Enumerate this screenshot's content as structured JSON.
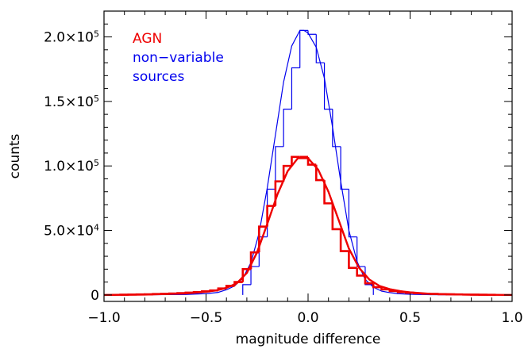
{
  "chart_data": {
    "type": "line",
    "title": "",
    "xlabel": "magnitude difference",
    "ylabel": "counts",
    "xlim": [
      -1.0,
      1.0
    ],
    "ylim": [
      -5000,
      220000
    ],
    "grid": false,
    "legend_placement": "top-left",
    "x_tick_labels": [
      "−1.0",
      "−0.5",
      "0.0",
      "0.5",
      "1.0"
    ],
    "x_tick_values": [
      -1.0,
      -0.5,
      0.0,
      0.5,
      1.0
    ],
    "y_tick_values": [
      0,
      50000,
      100000,
      150000,
      200000
    ],
    "y_tick_labels": [
      {
        "text": "0",
        "mantissa": "0",
        "exponent": ""
      },
      {
        "text": "5.0×10⁴",
        "mantissa": "5.0×10",
        "exponent": "4"
      },
      {
        "text": "1.0×10⁵",
        "mantissa": "1.0×10",
        "exponent": "5"
      },
      {
        "text": "1.5×10⁵",
        "mantissa": "1.5×10",
        "exponent": "5"
      },
      {
        "text": "2.0×10⁵",
        "mantissa": "2.0×10",
        "exponent": "5"
      }
    ],
    "bin_width": 0.04,
    "series": [
      {
        "name": "non−variable sources",
        "legend_lines": [
          "non−variable",
          "sources"
        ],
        "color": "#0000ee",
        "histogram": {
          "bin_centers": [
            -0.3,
            -0.26,
            -0.22,
            -0.18,
            -0.14,
            -0.1,
            -0.06,
            -0.02,
            0.02,
            0.06,
            0.1,
            0.14,
            0.18,
            0.22,
            0.26,
            0.3
          ],
          "counts": [
            8000,
            22000,
            45000,
            82000,
            115000,
            144000,
            176000,
            205000,
            202000,
            180000,
            144000,
            115000,
            82000,
            45000,
            22000,
            8000
          ]
        },
        "fit": {
          "x": [
            -1.0,
            -0.6,
            -0.5,
            -0.44,
            -0.4,
            -0.36,
            -0.32,
            -0.28,
            -0.24,
            -0.2,
            -0.16,
            -0.12,
            -0.08,
            -0.04,
            -0.02,
            0.0,
            0.04,
            0.08,
            0.12,
            0.16,
            0.2,
            0.24,
            0.28,
            0.32,
            0.36,
            0.4,
            0.44,
            0.5,
            0.6,
            1.0
          ],
          "y": [
            0,
            400,
            1000,
            2000,
            4000,
            7000,
            13000,
            25000,
            48000,
            83000,
            124000,
            165000,
            193000,
            205000,
            205000,
            203000,
            192000,
            168000,
            130000,
            88000,
            50000,
            26000,
            12000,
            6000,
            3000,
            1800,
            1000,
            500,
            200,
            0
          ]
        }
      },
      {
        "name": "AGN",
        "legend_lines": [
          "AGN"
        ],
        "color": "#ee0000",
        "histogram": {
          "bin_centers": [
            -0.9,
            -0.86,
            -0.82,
            -0.78,
            -0.74,
            -0.7,
            -0.66,
            -0.62,
            -0.58,
            -0.54,
            -0.5,
            -0.46,
            -0.42,
            -0.38,
            -0.34,
            -0.3,
            -0.26,
            -0.22,
            -0.18,
            -0.14,
            -0.1,
            -0.06,
            -0.02,
            0.02,
            0.06,
            0.1,
            0.14,
            0.18,
            0.22,
            0.26,
            0.3,
            0.34,
            0.38,
            0.42,
            0.46,
            0.5,
            0.54,
            0.58,
            0.62,
            0.66,
            0.7,
            0.74,
            0.78,
            0.82,
            0.86,
            0.9
          ],
          "counts": [
            200,
            300,
            400,
            500,
            700,
            900,
            1100,
            1400,
            1800,
            2200,
            2800,
            3500,
            5000,
            7000,
            10000,
            20000,
            33000,
            53000,
            69000,
            88000,
            100000,
            107000,
            107000,
            101000,
            89000,
            71000,
            51000,
            34000,
            21000,
            15000,
            9000,
            6000,
            4300,
            3000,
            2200,
            1700,
            1300,
            1000,
            800,
            600,
            500,
            400,
            300,
            250,
            200,
            150
          ]
        },
        "fit": {
          "x": [
            -1.0,
            -0.8,
            -0.6,
            -0.5,
            -0.45,
            -0.4,
            -0.35,
            -0.3,
            -0.25,
            -0.2,
            -0.15,
            -0.1,
            -0.05,
            0.0,
            0.05,
            0.1,
            0.15,
            0.2,
            0.25,
            0.3,
            0.35,
            0.4,
            0.45,
            0.5,
            0.6,
            0.8,
            1.0
          ],
          "y": [
            0,
            300,
            1200,
            2500,
            3500,
            5500,
            9000,
            17000,
            33000,
            55000,
            78000,
            96000,
            106000,
            106000,
            97000,
            80000,
            58000,
            36000,
            21000,
            12000,
            7000,
            4500,
            3000,
            2000,
            900,
            200,
            0
          ]
        }
      }
    ]
  }
}
